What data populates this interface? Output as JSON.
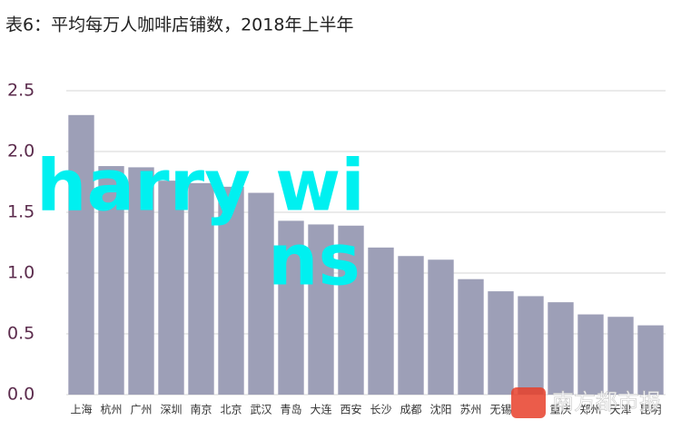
{
  "chart_data": {
    "type": "bar",
    "title": "表6：平均每万人咖啡店铺数，2018年上半年",
    "categories": [
      "上海",
      "杭州",
      "广州",
      "深圳",
      "南京",
      "北京",
      "武汉",
      "青岛",
      "大连",
      "西安",
      "长沙",
      "成都",
      "沈阳",
      "苏州",
      "无锡",
      null,
      "重庆",
      "郑州",
      "天津",
      "昆明"
    ],
    "values": [
      2.3,
      1.88,
      1.87,
      1.76,
      1.74,
      1.71,
      1.66,
      1.43,
      1.4,
      1.39,
      1.21,
      1.14,
      1.11,
      0.95,
      0.85,
      0.81,
      0.76,
      0.66,
      0.64,
      0.57
    ],
    "color": "#9d9fb7",
    "ylim": [
      0,
      2.5
    ],
    "yticks": [
      {
        "value": 0,
        "label": "0.0"
      },
      0.5,
      {
        "value": 1,
        "label": "1.0"
      },
      1.5,
      {
        "value": 2,
        "label": "2.0"
      },
      2.5
    ],
    "grid": true,
    "watermark": [
      "harry wi",
      "ns"
    ],
    "logo_text": "南方都市报"
  }
}
